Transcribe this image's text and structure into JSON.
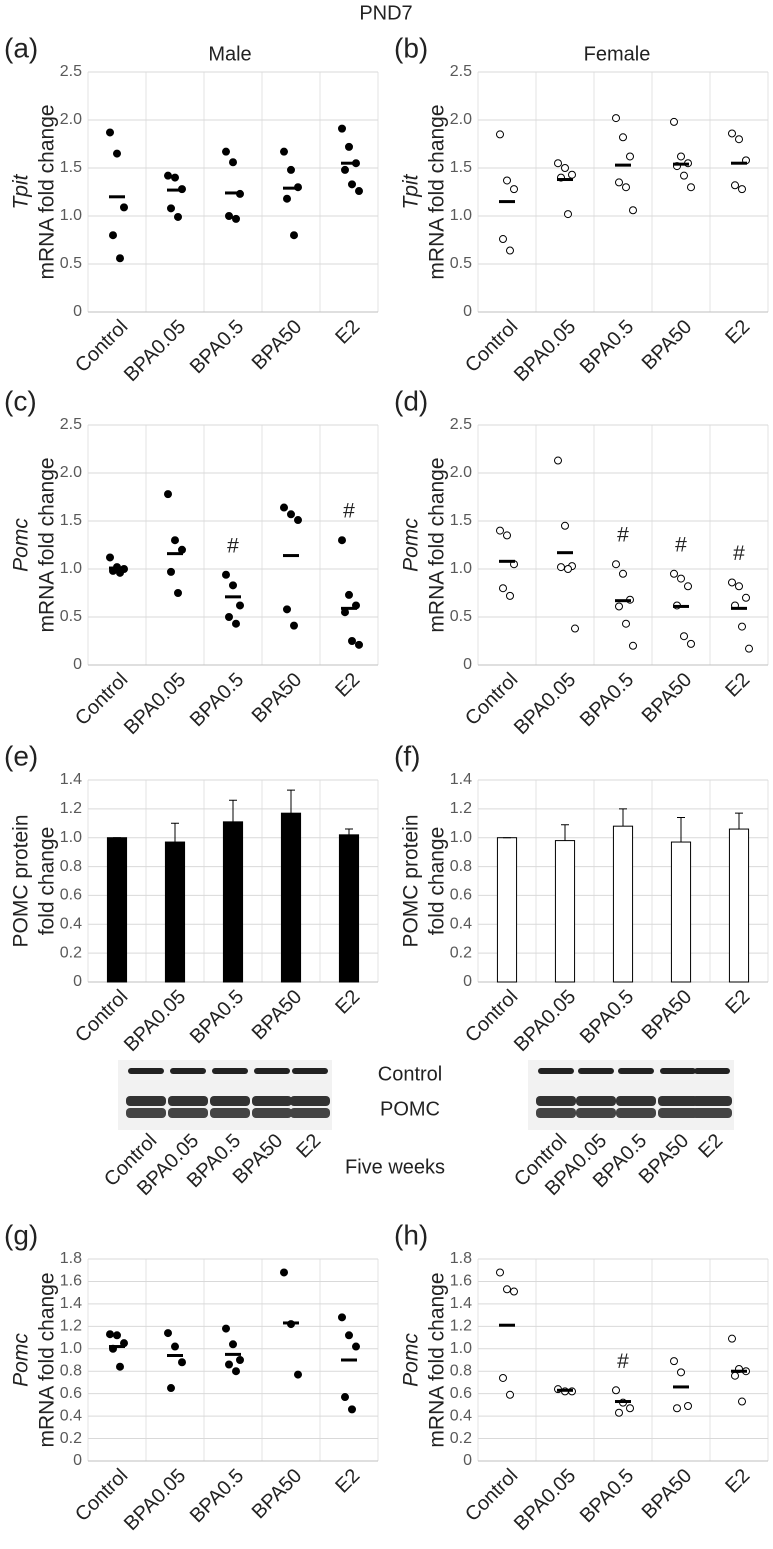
{
  "title": "PND7",
  "column_titles": [
    "Male",
    "Female"
  ],
  "section_title": "Five weeks",
  "blot": {
    "bands": [
      "Control",
      "POMC"
    ],
    "lanes": [
      "Control",
      "BPA0.05",
      "BPA0.5",
      "BPA50",
      "E2"
    ]
  },
  "chart_data": [
    {
      "type": "dot",
      "label": "(a)",
      "ylabel": [
        "Tpit",
        "mRNA fold change"
      ],
      "ylabel_italic": [
        true,
        false
      ],
      "marker": "filled",
      "color": "#000000",
      "categories": [
        "Control",
        "BPA0.05",
        "BPA0.5",
        "BPA50",
        "E2"
      ],
      "points": [
        [
          1.87,
          1.65,
          1.09,
          0.8,
          0.56
        ],
        [
          1.42,
          1.4,
          1.28,
          1.08,
          0.99
        ],
        [
          1.67,
          1.56,
          1.23,
          1.0,
          0.97
        ],
        [
          1.67,
          1.48,
          1.3,
          1.18,
          0.8
        ],
        [
          1.91,
          1.72,
          1.55,
          1.48,
          1.33,
          1.26
        ]
      ],
      "means": [
        1.2,
        1.27,
        1.24,
        1.29,
        1.55
      ],
      "annotations": [
        null,
        null,
        null,
        null,
        null
      ],
      "ylim": [
        0,
        2.5
      ],
      "yticks": [
        0,
        0.5,
        {
          "value": 1,
          "label": "1.0"
        },
        1.5,
        {
          "value": 2,
          "label": "2.0"
        },
        2.5
      ],
      "grid": true
    },
    {
      "type": "dot",
      "label": "(b)",
      "ylabel": [
        "Tpit",
        "mRNA fold change"
      ],
      "ylabel_italic": [
        true,
        false
      ],
      "marker": "open",
      "color": "#000000",
      "categories": [
        "Control",
        "BPA0.05",
        "BPA0.5",
        "BPA50",
        "E2"
      ],
      "points": [
        [
          1.85,
          1.37,
          1.28,
          0.76,
          0.64
        ],
        [
          1.55,
          1.5,
          1.43,
          1.4,
          1.02
        ],
        [
          2.02,
          1.82,
          1.62,
          1.35,
          1.3,
          1.06
        ],
        [
          1.98,
          1.62,
          1.55,
          1.52,
          1.42,
          1.3
        ],
        [
          1.86,
          1.8,
          1.58,
          1.32,
          1.28
        ]
      ],
      "means": [
        1.15,
        1.38,
        1.53,
        1.54,
        1.55
      ],
      "annotations": [
        null,
        null,
        null,
        null,
        null
      ],
      "ylim": [
        0,
        2.5
      ],
      "yticks": [
        0,
        0.5,
        {
          "value": 1,
          "label": "1.0"
        },
        1.5,
        {
          "value": 2,
          "label": "2.0"
        },
        2.5
      ],
      "grid": true
    },
    {
      "type": "dot",
      "label": "(c)",
      "ylabel": [
        "Pomc",
        "mRNA fold change"
      ],
      "ylabel_italic": [
        true,
        false
      ],
      "marker": "filled",
      "color": "#000000",
      "categories": [
        "Control",
        "BPA0.05",
        "BPA0.5",
        "BPA50",
        "E2"
      ],
      "points": [
        [
          1.12,
          1.02,
          1.0,
          0.98,
          0.96
        ],
        [
          1.78,
          1.3,
          1.2,
          0.97,
          0.75
        ],
        [
          0.94,
          0.83,
          0.62,
          0.5,
          0.43
        ],
        [
          1.64,
          1.57,
          1.51,
          0.58,
          0.41
        ],
        [
          1.3,
          0.73,
          0.62,
          0.55,
          0.25,
          0.21
        ]
      ],
      "means": [
        1.01,
        1.16,
        0.71,
        1.14,
        0.59
      ],
      "annotations": [
        null,
        null,
        "#",
        null,
        "#"
      ],
      "ylim": [
        0,
        2.5
      ],
      "yticks": [
        0,
        0.5,
        {
          "value": 1,
          "label": "1.0"
        },
        1.5,
        {
          "value": 2,
          "label": "2.0"
        },
        2.5
      ],
      "grid": true
    },
    {
      "type": "dot",
      "label": "(d)",
      "ylabel": [
        "Pomc",
        "mRNA fold change"
      ],
      "ylabel_italic": [
        true,
        false
      ],
      "marker": "open",
      "color": "#000000",
      "categories": [
        "Control",
        "BPA0.05",
        "BPA0.5",
        "BPA50",
        "E2"
      ],
      "points": [
        [
          1.4,
          1.35,
          1.05,
          0.8,
          0.72
        ],
        [
          2.13,
          1.45,
          1.03,
          1.02,
          1.0,
          0.38
        ],
        [
          1.05,
          0.95,
          0.68,
          0.61,
          0.43,
          0.2
        ],
        [
          0.95,
          0.9,
          0.82,
          0.62,
          0.3,
          0.22
        ],
        [
          0.86,
          0.82,
          0.7,
          0.62,
          0.4,
          0.17
        ]
      ],
      "means": [
        1.08,
        1.17,
        0.67,
        0.61,
        0.59
      ],
      "annotations": [
        null,
        null,
        "#",
        "#",
        "#"
      ],
      "ylim": [
        0,
        2.5
      ],
      "yticks": [
        0,
        0.5,
        {
          "value": 1,
          "label": "1.0"
        },
        1.5,
        {
          "value": 2,
          "label": "2.0"
        },
        2.5
      ],
      "grid": true
    },
    {
      "type": "bar",
      "label": "(e)",
      "ylabel": [
        "POMC protein",
        "fold change"
      ],
      "ylabel_italic": [
        false,
        false
      ],
      "color": "#000000",
      "categories": [
        "Control",
        "BPA0.05",
        "BPA0.5",
        "BPA50",
        "E2"
      ],
      "values": [
        1.0,
        0.97,
        1.11,
        1.17,
        1.02
      ],
      "errors": [
        0,
        0.13,
        0.15,
        0.16,
        0.04
      ],
      "ylim": [
        0,
        1.4
      ],
      "yticks": [
        0,
        0.2,
        0.4,
        0.6,
        0.8,
        {
          "value": 1,
          "label": "1.0"
        },
        1.2,
        1.4
      ],
      "grid": true
    },
    {
      "type": "bar",
      "label": "(f)",
      "ylabel": [
        "POMC protein",
        "fold change"
      ],
      "ylabel_italic": [
        false,
        false
      ],
      "color": "#ffffff",
      "categories": [
        "Control",
        "BPA0.05",
        "BPA0.5",
        "BPA50",
        "E2"
      ],
      "values": [
        1.0,
        0.98,
        1.08,
        0.97,
        1.06
      ],
      "errors": [
        0,
        0.11,
        0.12,
        0.17,
        0.11
      ],
      "ylim": [
        0,
        1.4
      ],
      "yticks": [
        0,
        0.2,
        0.4,
        0.6,
        0.8,
        {
          "value": 1,
          "label": "1.0"
        },
        1.2,
        1.4
      ],
      "grid": true
    },
    {
      "type": "dot",
      "label": "(g)",
      "ylabel": [
        "Pomc",
        "mRNA fold change"
      ],
      "ylabel_italic": [
        true,
        false
      ],
      "marker": "filled",
      "color": "#000000",
      "categories": [
        "Control",
        "BPA0.05",
        "BPA0.5",
        "BPA50",
        "E2"
      ],
      "points": [
        [
          1.13,
          1.12,
          1.05,
          1.0,
          0.84
        ],
        [
          1.14,
          1.02,
          0.88,
          0.65
        ],
        [
          1.18,
          1.04,
          0.9,
          0.86,
          0.8
        ],
        [
          1.68,
          1.22,
          0.77
        ],
        [
          1.28,
          1.12,
          1.02,
          0.57,
          0.46
        ]
      ],
      "means": [
        1.02,
        0.94,
        0.95,
        1.23,
        0.9
      ],
      "annotations": [
        null,
        null,
        null,
        null,
        null
      ],
      "ylim": [
        0,
        1.8
      ],
      "yticks": [
        0,
        0.2,
        0.4,
        0.6,
        0.8,
        {
          "value": 1,
          "label": "1.0"
        },
        1.2,
        1.4,
        1.6,
        1.8
      ],
      "grid": true
    },
    {
      "type": "dot",
      "label": "(h)",
      "ylabel": [
        "Pomc",
        "mRNA fold change"
      ],
      "ylabel_italic": [
        true,
        false
      ],
      "marker": "open",
      "color": "#000000",
      "categories": [
        "Control",
        "BPA0.05",
        "BPA0.5",
        "BPA50",
        "E2"
      ],
      "points": [
        [
          1.68,
          1.53,
          1.51,
          0.74,
          0.59
        ],
        [
          0.64,
          0.62,
          0.62
        ],
        [
          0.63,
          0.52,
          0.47,
          0.43
        ],
        [
          0.89,
          0.79,
          0.49,
          0.47
        ],
        [
          1.09,
          0.82,
          0.8,
          0.76,
          0.53
        ]
      ],
      "means": [
        1.21,
        0.63,
        0.53,
        0.66,
        0.8
      ],
      "annotations": [
        null,
        null,
        "#",
        null,
        null
      ],
      "ylim": [
        0,
        1.8
      ],
      "yticks": [
        0,
        0.2,
        0.4,
        0.6,
        0.8,
        {
          "value": 1,
          "label": "1.0"
        },
        1.2,
        1.4,
        1.6,
        1.8
      ],
      "grid": true
    }
  ]
}
